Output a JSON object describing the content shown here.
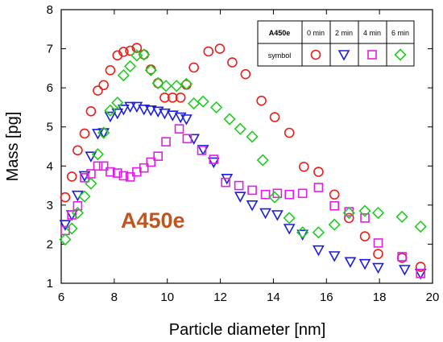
{
  "chart_data": {
    "type": "scatter",
    "title": "",
    "xlabel": "Particle diameter [nm]",
    "ylabel": "Mass [pg]",
    "xlim": [
      6,
      20
    ],
    "ylim": [
      1,
      8
    ],
    "xticks": [
      6,
      8,
      10,
      12,
      14,
      16,
      18,
      20
    ],
    "yticks": [
      1,
      2,
      3,
      4,
      5,
      6,
      7,
      8
    ],
    "grid": false,
    "annotation": "A450e",
    "legend": {
      "placement": "top-right",
      "name": "A450e",
      "row_label": "symbol",
      "headers": [
        "0 min",
        "2 min",
        "4 min",
        "6 min"
      ]
    },
    "series": [
      {
        "name": "0 min",
        "marker": "circle",
        "color": "#e8201c",
        "points": [
          [
            6.15,
            3.2
          ],
          [
            6.4,
            3.73
          ],
          [
            6.62,
            4.4
          ],
          [
            6.88,
            4.83
          ],
          [
            7.12,
            5.4
          ],
          [
            7.38,
            5.93
          ],
          [
            7.6,
            6.07
          ],
          [
            7.85,
            6.45
          ],
          [
            8.12,
            6.83
          ],
          [
            8.35,
            6.92
          ],
          [
            8.6,
            6.95
          ],
          [
            8.85,
            7.02
          ],
          [
            9.12,
            6.85
          ],
          [
            9.38,
            6.47
          ],
          [
            9.65,
            6.12
          ],
          [
            9.9,
            5.75
          ],
          [
            10.2,
            5.75
          ],
          [
            10.5,
            5.75
          ],
          [
            10.72,
            6.08
          ],
          [
            11.0,
            6.52
          ],
          [
            11.55,
            6.93
          ],
          [
            11.98,
            7.0
          ],
          [
            12.45,
            6.65
          ],
          [
            12.95,
            6.35
          ],
          [
            13.55,
            5.67
          ],
          [
            14.05,
            5.25
          ],
          [
            14.6,
            4.85
          ],
          [
            15.15,
            3.98
          ],
          [
            15.7,
            3.85
          ],
          [
            16.3,
            3.27
          ],
          [
            16.85,
            2.67
          ],
          [
            17.45,
            2.2
          ],
          [
            17.95,
            1.75
          ],
          [
            18.85,
            1.65
          ],
          [
            19.55,
            1.42
          ]
        ]
      },
      {
        "name": "2 min",
        "marker": "triangle",
        "color": "#1c1cdc",
        "points": [
          [
            6.15,
            2.5
          ],
          [
            6.4,
            2.75
          ],
          [
            6.62,
            3.25
          ],
          [
            6.88,
            3.75
          ],
          [
            7.12,
            4.25
          ],
          [
            7.38,
            4.83
          ],
          [
            7.6,
            4.85
          ],
          [
            7.85,
            5.27
          ],
          [
            8.12,
            5.35
          ],
          [
            8.35,
            5.45
          ],
          [
            8.6,
            5.52
          ],
          [
            8.85,
            5.52
          ],
          [
            9.12,
            5.45
          ],
          [
            9.38,
            5.43
          ],
          [
            9.65,
            5.4
          ],
          [
            9.9,
            5.35
          ],
          [
            10.2,
            5.3
          ],
          [
            10.5,
            5.25
          ],
          [
            10.72,
            5.2
          ],
          [
            11.0,
            4.7
          ],
          [
            11.35,
            4.42
          ],
          [
            11.75,
            4.1
          ],
          [
            12.25,
            3.68
          ],
          [
            12.75,
            3.22
          ],
          [
            13.2,
            3.0
          ],
          [
            13.7,
            2.8
          ],
          [
            14.15,
            2.75
          ],
          [
            14.6,
            2.4
          ],
          [
            15.1,
            2.25
          ],
          [
            15.7,
            1.85
          ],
          [
            16.3,
            1.7
          ],
          [
            16.9,
            1.55
          ],
          [
            17.45,
            1.5
          ],
          [
            17.95,
            1.4
          ],
          [
            18.95,
            1.35
          ],
          [
            19.55,
            1.25
          ]
        ]
      },
      {
        "name": "4 min",
        "marker": "square",
        "color": "#e01ee6",
        "points": [
          [
            6.15,
            2.35
          ],
          [
            6.4,
            2.75
          ],
          [
            6.62,
            2.98
          ],
          [
            6.88,
            3.7
          ],
          [
            7.12,
            3.8
          ],
          [
            7.38,
            4.0
          ],
          [
            7.6,
            4.0
          ],
          [
            7.85,
            3.85
          ],
          [
            8.12,
            3.82
          ],
          [
            8.35,
            3.75
          ],
          [
            8.6,
            3.72
          ],
          [
            8.85,
            3.85
          ],
          [
            9.12,
            3.95
          ],
          [
            9.38,
            4.1
          ],
          [
            9.65,
            4.25
          ],
          [
            9.95,
            4.62
          ],
          [
            10.45,
            4.95
          ],
          [
            10.75,
            4.7
          ],
          [
            11.3,
            4.4
          ],
          [
            11.75,
            4.17
          ],
          [
            12.2,
            3.58
          ],
          [
            12.7,
            3.5
          ],
          [
            13.2,
            3.38
          ],
          [
            13.7,
            3.27
          ],
          [
            14.15,
            3.3
          ],
          [
            14.6,
            3.27
          ],
          [
            15.1,
            3.3
          ],
          [
            15.7,
            3.45
          ],
          [
            16.3,
            2.98
          ],
          [
            16.85,
            2.83
          ],
          [
            17.45,
            2.67
          ],
          [
            17.95,
            2.03
          ],
          [
            18.85,
            1.68
          ],
          [
            19.55,
            1.25
          ]
        ]
      },
      {
        "name": "6 min",
        "marker": "diamond",
        "color": "#22cc22",
        "points": [
          [
            6.15,
            2.12
          ],
          [
            6.4,
            2.4
          ],
          [
            6.62,
            2.8
          ],
          [
            6.88,
            3.22
          ],
          [
            7.12,
            3.55
          ],
          [
            7.38,
            4.3
          ],
          [
            7.6,
            4.85
          ],
          [
            7.85,
            5.42
          ],
          [
            8.12,
            5.62
          ],
          [
            8.35,
            6.32
          ],
          [
            8.6,
            6.55
          ],
          [
            8.85,
            6.83
          ],
          [
            9.12,
            6.85
          ],
          [
            9.38,
            6.45
          ],
          [
            9.65,
            6.12
          ],
          [
            9.95,
            6.05
          ],
          [
            10.35,
            6.05
          ],
          [
            10.72,
            6.1
          ],
          [
            11.0,
            5.6
          ],
          [
            11.35,
            5.65
          ],
          [
            11.85,
            5.5
          ],
          [
            12.35,
            5.2
          ],
          [
            12.75,
            4.95
          ],
          [
            13.2,
            4.75
          ],
          [
            13.6,
            4.15
          ],
          [
            14.05,
            3.2
          ],
          [
            14.6,
            2.67
          ],
          [
            15.1,
            2.3
          ],
          [
            15.7,
            2.3
          ],
          [
            16.3,
            2.5
          ],
          [
            16.85,
            2.8
          ],
          [
            17.45,
            2.85
          ],
          [
            17.95,
            2.8
          ],
          [
            18.85,
            2.7
          ],
          [
            19.55,
            2.45
          ]
        ]
      }
    ]
  }
}
